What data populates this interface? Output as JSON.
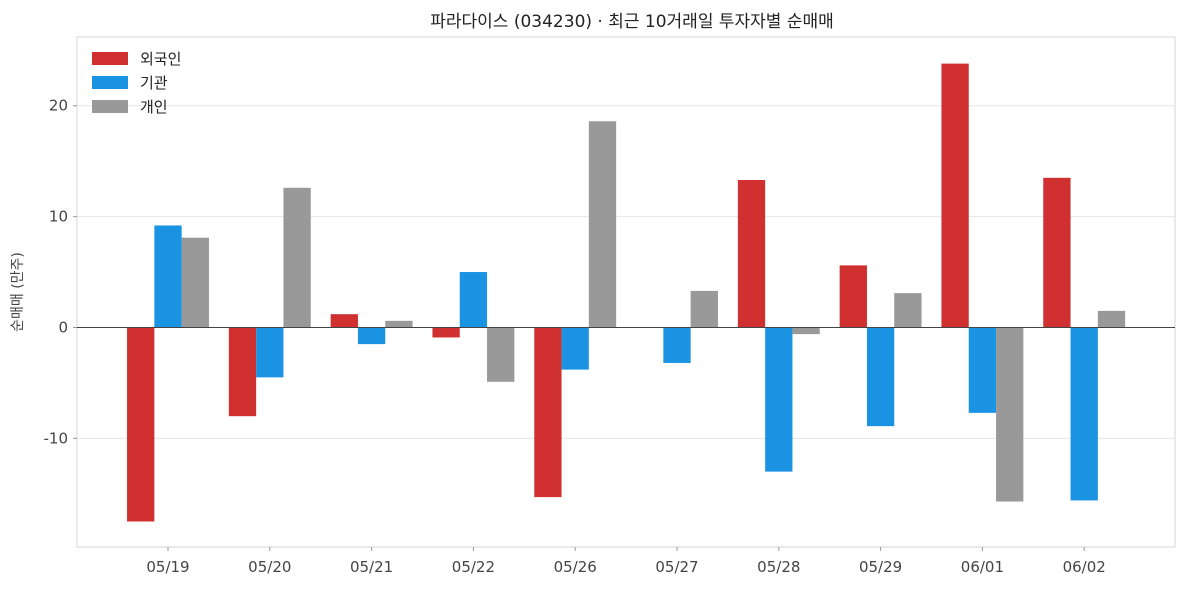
{
  "chart_data": {
    "type": "bar",
    "title": "파라다이스 (034230) · 최근 10거래일 투자자별 순매매",
    "xlabel": "",
    "ylabel": "순매매 (만주)",
    "ylim": [
      -19.8,
      26.2
    ],
    "yticks": [
      -10,
      0,
      10,
      20
    ],
    "grid": true,
    "legend_position": "top-left",
    "categories": [
      "05/19",
      "05/20",
      "05/21",
      "05/22",
      "05/26",
      "05/27",
      "05/28",
      "05/29",
      "06/01",
      "06/02"
    ],
    "series": [
      {
        "name": "외국인",
        "color": "#d03030",
        "values": [
          -17.5,
          -8.0,
          1.2,
          -0.9,
          -15.3,
          0.0,
          13.3,
          5.6,
          23.8,
          13.5
        ]
      },
      {
        "name": "기관",
        "color": "#1a93e2",
        "values": [
          9.2,
          -4.5,
          -1.5,
          5.0,
          -3.8,
          -3.2,
          -13.0,
          -8.9,
          -7.7,
          -15.6
        ]
      },
      {
        "name": "개인",
        "color": "#999999",
        "values": [
          8.1,
          12.6,
          0.6,
          -4.9,
          18.6,
          3.3,
          -0.6,
          3.1,
          -15.7,
          1.5
        ]
      }
    ]
  }
}
